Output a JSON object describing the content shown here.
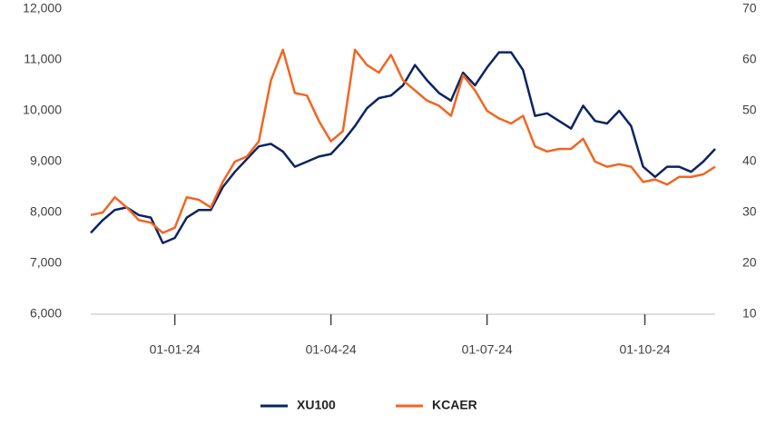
{
  "chart_data": {
    "type": "line",
    "x": [
      "13-11-23",
      "20-11-23",
      "27-11-23",
      "04-12-23",
      "11-12-23",
      "18-12-23",
      "25-12-23",
      "01-01-24",
      "08-01-24",
      "15-01-24",
      "22-01-24",
      "29-01-24",
      "05-02-24",
      "12-02-24",
      "19-02-24",
      "26-02-24",
      "04-03-24",
      "11-03-24",
      "18-03-24",
      "25-03-24",
      "01-04-24",
      "08-04-24",
      "15-04-24",
      "22-04-24",
      "29-04-24",
      "06-05-24",
      "13-05-24",
      "20-05-24",
      "27-05-24",
      "03-06-24",
      "10-06-24",
      "17-06-24",
      "24-06-24",
      "01-07-24",
      "08-07-24",
      "15-07-24",
      "22-07-24",
      "29-07-24",
      "05-08-24",
      "12-08-24",
      "19-08-24",
      "26-08-24",
      "02-09-24",
      "09-09-24",
      "16-09-24",
      "23-09-24",
      "30-09-24",
      "07-10-24",
      "14-10-24",
      "21-10-24",
      "28-10-24",
      "04-11-24",
      "11-11-24"
    ],
    "series": [
      {
        "name": "XU100",
        "color": "#0b2461",
        "values": [
          7600,
          7850,
          8050,
          8100,
          7950,
          7900,
          7400,
          7500,
          7900,
          8050,
          8050,
          8500,
          8800,
          9050,
          9300,
          9350,
          9200,
          8900,
          9000,
          9100,
          9150,
          9400,
          9700,
          10050,
          10250,
          10300,
          10500,
          10900,
          10600,
          10350,
          10200,
          10750,
          10500,
          10850,
          11150,
          11150,
          10800,
          9900,
          9950,
          9800,
          9650,
          10100,
          9800,
          9750,
          10000,
          9700,
          8900,
          8700,
          8900,
          8900,
          8800,
          9000,
          9250
        ]
      },
      {
        "name": "KCAER",
        "color": "#f26522",
        "axis": "y2",
        "values": [
          29.5,
          30,
          33,
          31,
          28.5,
          28,
          26,
          27,
          33,
          32.5,
          31,
          36,
          40,
          41,
          44,
          56,
          62,
          53.5,
          53,
          48,
          44,
          46,
          62,
          59,
          57.5,
          61,
          56,
          54,
          52,
          51,
          49,
          57,
          54,
          50,
          48.5,
          47.5,
          49,
          43,
          42,
          42.5,
          42.5,
          44.5,
          40,
          39,
          39.5,
          39,
          36,
          36.5,
          35.5,
          37,
          37,
          37.5,
          39
        ]
      }
    ],
    "xlim": [
      "13-11-23",
      "11-11-24"
    ],
    "xticks": [
      "01-01-24",
      "01-04-24",
      "01-07-24",
      "01-10-24"
    ],
    "ylim": [
      6000,
      12000
    ],
    "yticks": [
      {
        "value": 6000,
        "label": "6,000"
      },
      {
        "value": 7000,
        "label": "7,000"
      },
      {
        "value": 8000,
        "label": "8,000"
      },
      {
        "value": 9000,
        "label": "9,000"
      },
      {
        "value": 10000,
        "label": "10,000"
      },
      {
        "value": 11000,
        "label": "11,000"
      },
      {
        "value": 12000,
        "label": "12,000"
      }
    ],
    "y2lim": [
      10,
      70
    ],
    "y2ticks": [
      10,
      20,
      30,
      40,
      50,
      60,
      70
    ],
    "legend": "bottom"
  }
}
